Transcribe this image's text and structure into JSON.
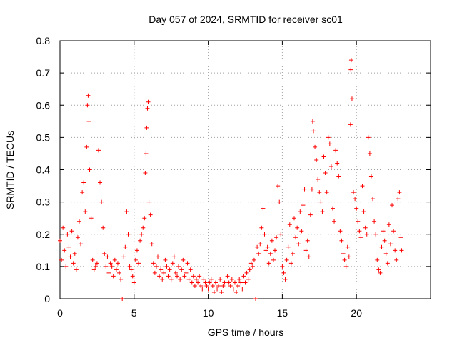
{
  "chart_data": {
    "type": "scatter",
    "title": "Day 057 of 2024, SRMTID for receiver sc01",
    "xlabel": "GPS time / hours",
    "ylabel": "SRMTID / TECUs",
    "xlim": [
      0,
      25
    ],
    "ylim": [
      0,
      0.8
    ],
    "xticks": [
      0,
      5,
      10,
      15,
      20
    ],
    "xtick_labels": [
      "0",
      "5",
      "10",
      "15",
      "20"
    ],
    "yticks": [
      0,
      0.1,
      0.2,
      0.3,
      0.4,
      0.5,
      0.6,
      0.7,
      0.8
    ],
    "ytick_labels": [
      "0",
      "0.1",
      "0.2",
      "0.3",
      "0.4",
      "0.5",
      "0.6",
      "0.7",
      "0.8"
    ],
    "grid": true,
    "marker": "+",
    "color": "#ff0000",
    "series": [
      {
        "name": "sc01",
        "points": [
          [
            0.0,
            0.18
          ],
          [
            0.1,
            0.12
          ],
          [
            0.2,
            0.22
          ],
          [
            0.3,
            0.15
          ],
          [
            0.4,
            0.1
          ],
          [
            0.5,
            0.2
          ],
          [
            0.6,
            0.16
          ],
          [
            0.7,
            0.13
          ],
          [
            0.8,
            0.21
          ],
          [
            0.9,
            0.11
          ],
          [
            1.0,
            0.14
          ],
          [
            1.1,
            0.09
          ],
          [
            1.2,
            0.19
          ],
          [
            1.3,
            0.24
          ],
          [
            1.4,
            0.17
          ],
          [
            1.5,
            0.33
          ],
          [
            1.6,
            0.36
          ],
          [
            1.7,
            0.27
          ],
          [
            1.8,
            0.47
          ],
          [
            1.85,
            0.6
          ],
          [
            1.9,
            0.63
          ],
          [
            1.95,
            0.55
          ],
          [
            2.0,
            0.4
          ],
          [
            2.1,
            0.25
          ],
          [
            2.2,
            0.12
          ],
          [
            2.3,
            0.09
          ],
          [
            2.4,
            0.1
          ],
          [
            2.5,
            0.11
          ],
          [
            2.6,
            0.46
          ],
          [
            2.7,
            0.36
          ],
          [
            2.8,
            0.3
          ],
          [
            2.9,
            0.22
          ],
          [
            3.0,
            0.14
          ],
          [
            3.1,
            0.1
          ],
          [
            3.2,
            0.13
          ],
          [
            3.3,
            0.08
          ],
          [
            3.4,
            0.11
          ],
          [
            3.5,
            0.1
          ],
          [
            3.6,
            0.07
          ],
          [
            3.7,
            0.12
          ],
          [
            3.8,
            0.09
          ],
          [
            3.9,
            0.11
          ],
          [
            4.0,
            0.08
          ],
          [
            4.1,
            0.06
          ],
          [
            4.2,
            0.0
          ],
          [
            4.3,
            0.13
          ],
          [
            4.4,
            0.16
          ],
          [
            4.5,
            0.27
          ],
          [
            4.6,
            0.2
          ],
          [
            4.7,
            0.1
          ],
          [
            4.8,
            0.09
          ],
          [
            4.9,
            0.07
          ],
          [
            5.0,
            0.05
          ],
          [
            5.1,
            0.12
          ],
          [
            5.2,
            0.15
          ],
          [
            5.3,
            0.11
          ],
          [
            5.4,
            0.18
          ],
          [
            5.5,
            0.2
          ],
          [
            5.6,
            0.22
          ],
          [
            5.7,
            0.25
          ],
          [
            5.75,
            0.39
          ],
          [
            5.8,
            0.45
          ],
          [
            5.85,
            0.53
          ],
          [
            5.9,
            0.59
          ],
          [
            5.95,
            0.61
          ],
          [
            6.0,
            0.3
          ],
          [
            6.1,
            0.26
          ],
          [
            6.2,
            0.17
          ],
          [
            6.3,
            0.11
          ],
          [
            6.4,
            0.08
          ],
          [
            6.5,
            0.1
          ],
          [
            6.6,
            0.13
          ],
          [
            6.7,
            0.07
          ],
          [
            6.8,
            0.09
          ],
          [
            6.9,
            0.06
          ],
          [
            7.0,
            0.08
          ],
          [
            7.1,
            0.12
          ],
          [
            7.2,
            0.1
          ],
          [
            7.3,
            0.07
          ],
          [
            7.4,
            0.09
          ],
          [
            7.5,
            0.06
          ],
          [
            7.6,
            0.11
          ],
          [
            7.7,
            0.13
          ],
          [
            7.8,
            0.08
          ],
          [
            7.9,
            0.07
          ],
          [
            8.0,
            0.1
          ],
          [
            8.1,
            0.06
          ],
          [
            8.2,
            0.09
          ],
          [
            8.3,
            0.12
          ],
          [
            8.4,
            0.07
          ],
          [
            8.5,
            0.08
          ],
          [
            8.6,
            0.11
          ],
          [
            8.7,
            0.06
          ],
          [
            8.8,
            0.09
          ],
          [
            8.9,
            0.05
          ],
          [
            9.0,
            0.07
          ],
          [
            9.1,
            0.04
          ],
          [
            9.2,
            0.06
          ],
          [
            9.3,
            0.05
          ],
          [
            9.4,
            0.07
          ],
          [
            9.5,
            0.04
          ],
          [
            9.6,
            0.03
          ],
          [
            9.7,
            0.06
          ],
          [
            9.8,
            0.05
          ],
          [
            9.9,
            0.04
          ],
          [
            10.0,
            0.03
          ],
          [
            10.1,
            0.05
          ],
          [
            10.2,
            0.06
          ],
          [
            10.3,
            0.04
          ],
          [
            10.4,
            0.02
          ],
          [
            10.5,
            0.05
          ],
          [
            10.6,
            0.03
          ],
          [
            10.7,
            0.04
          ],
          [
            10.8,
            0.06
          ],
          [
            10.9,
            0.02
          ],
          [
            11.0,
            0.04
          ],
          [
            11.1,
            0.05
          ],
          [
            11.2,
            0.03
          ],
          [
            11.3,
            0.07
          ],
          [
            11.4,
            0.05
          ],
          [
            11.5,
            0.04
          ],
          [
            11.6,
            0.06
          ],
          [
            11.7,
            0.03
          ],
          [
            11.8,
            0.05
          ],
          [
            11.9,
            0.02
          ],
          [
            12.0,
            0.04
          ],
          [
            12.1,
            0.06
          ],
          [
            12.2,
            0.05
          ],
          [
            12.3,
            0.03
          ],
          [
            12.4,
            0.07
          ],
          [
            12.5,
            0.05
          ],
          [
            12.6,
            0.08
          ],
          [
            12.7,
            0.06
          ],
          [
            12.8,
            0.09
          ],
          [
            12.9,
            0.11
          ],
          [
            13.0,
            0.1
          ],
          [
            13.1,
            0.12
          ],
          [
            13.2,
            0.0
          ],
          [
            13.3,
            0.16
          ],
          [
            13.4,
            0.14
          ],
          [
            13.5,
            0.17
          ],
          [
            13.6,
            0.22
          ],
          [
            13.7,
            0.28
          ],
          [
            13.8,
            0.2
          ],
          [
            13.9,
            0.15
          ],
          [
            14.0,
            0.16
          ],
          [
            14.1,
            0.11
          ],
          [
            14.2,
            0.14
          ],
          [
            14.3,
            0.18
          ],
          [
            14.4,
            0.12
          ],
          [
            14.5,
            0.15
          ],
          [
            14.6,
            0.19
          ],
          [
            14.7,
            0.35
          ],
          [
            14.8,
            0.3
          ],
          [
            14.9,
            0.2
          ],
          [
            15.0,
            0.1
          ],
          [
            15.1,
            0.08
          ],
          [
            15.2,
            0.06
          ],
          [
            15.3,
            0.12
          ],
          [
            15.4,
            0.16
          ],
          [
            15.5,
            0.23
          ],
          [
            15.6,
            0.11
          ],
          [
            15.7,
            0.14
          ],
          [
            15.8,
            0.25
          ],
          [
            15.9,
            0.19
          ],
          [
            16.0,
            0.22
          ],
          [
            16.1,
            0.17
          ],
          [
            16.2,
            0.27
          ],
          [
            16.3,
            0.21
          ],
          [
            16.4,
            0.29
          ],
          [
            16.5,
            0.34
          ],
          [
            16.6,
            0.15
          ],
          [
            16.7,
            0.18
          ],
          [
            16.8,
            0.13
          ],
          [
            16.9,
            0.26
          ],
          [
            17.0,
            0.34
          ],
          [
            17.05,
            0.55
          ],
          [
            17.1,
            0.52
          ],
          [
            17.2,
            0.47
          ],
          [
            17.3,
            0.43
          ],
          [
            17.4,
            0.37
          ],
          [
            17.5,
            0.33
          ],
          [
            17.6,
            0.3
          ],
          [
            17.7,
            0.27
          ],
          [
            17.8,
            0.44
          ],
          [
            17.9,
            0.39
          ],
          [
            18.0,
            0.33
          ],
          [
            18.1,
            0.5
          ],
          [
            18.2,
            0.48
          ],
          [
            18.3,
            0.41
          ],
          [
            18.4,
            0.28
          ],
          [
            18.5,
            0.24
          ],
          [
            18.6,
            0.46
          ],
          [
            18.7,
            0.42
          ],
          [
            18.8,
            0.38
          ],
          [
            18.9,
            0.21
          ],
          [
            19.0,
            0.18
          ],
          [
            19.1,
            0.14
          ],
          [
            19.2,
            0.12
          ],
          [
            19.3,
            0.1
          ],
          [
            19.4,
            0.16
          ],
          [
            19.5,
            0.13
          ],
          [
            19.6,
            0.54
          ],
          [
            19.62,
            0.71
          ],
          [
            19.65,
            0.74
          ],
          [
            19.7,
            0.62
          ],
          [
            19.8,
            0.33
          ],
          [
            19.9,
            0.31
          ],
          [
            20.0,
            0.28
          ],
          [
            20.1,
            0.24
          ],
          [
            20.2,
            0.21
          ],
          [
            20.3,
            0.19
          ],
          [
            20.4,
            0.35
          ],
          [
            20.5,
            0.27
          ],
          [
            20.6,
            0.22
          ],
          [
            20.7,
            0.2
          ],
          [
            20.8,
            0.5
          ],
          [
            20.9,
            0.45
          ],
          [
            21.0,
            0.38
          ],
          [
            21.1,
            0.31
          ],
          [
            21.2,
            0.24
          ],
          [
            21.3,
            0.2
          ],
          [
            21.4,
            0.12
          ],
          [
            21.5,
            0.09
          ],
          [
            21.6,
            0.08
          ],
          [
            21.7,
            0.16
          ],
          [
            21.8,
            0.21
          ],
          [
            21.9,
            0.18
          ],
          [
            22.0,
            0.14
          ],
          [
            22.1,
            0.11
          ],
          [
            22.2,
            0.23
          ],
          [
            22.3,
            0.17
          ],
          [
            22.4,
            0.29
          ],
          [
            22.5,
            0.21
          ],
          [
            22.6,
            0.15
          ],
          [
            22.7,
            0.12
          ],
          [
            22.8,
            0.31
          ],
          [
            22.9,
            0.33
          ],
          [
            23.0,
            0.19
          ],
          [
            23.05,
            0.15
          ]
        ]
      }
    ]
  }
}
